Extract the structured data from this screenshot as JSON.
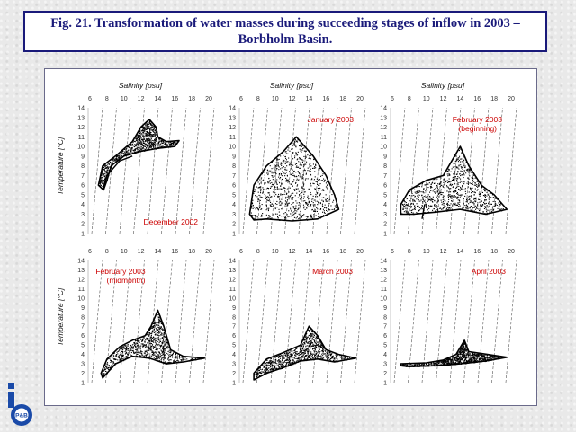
{
  "title": "Fig. 21. Transformation of water masses during succeeding stages of inflow in 2003 – Borbholm Basin.",
  "logo_text": "P&B",
  "colors": {
    "title": "#1a1a7a",
    "label_red": "#cc0000",
    "points": "#000000",
    "frame": "#6a6a8a"
  },
  "x_axis_label": "Salinity [psu]",
  "y_axis_label": "Temperature [°C]",
  "x_ticks": [
    "6",
    "8",
    "10",
    "12",
    "14",
    "16",
    "18",
    "20"
  ],
  "y_ticks": [
    "1",
    "2",
    "3",
    "4",
    "5",
    "6",
    "7",
    "8",
    "9",
    "10",
    "11",
    "12",
    "13",
    "14"
  ],
  "chart_data": [
    {
      "type": "scatter",
      "label": "December 2002",
      "xlabel": "Salinity [psu]",
      "ylabel": "Temperature [°C]",
      "xlim": [
        6,
        20
      ],
      "ylim": [
        1,
        14
      ],
      "shape": [
        [
          7,
          6
        ],
        [
          7.5,
          8
        ],
        [
          9,
          9
        ],
        [
          11,
          10.5
        ],
        [
          12,
          12
        ],
        [
          13,
          12.8
        ],
        [
          13.8,
          12
        ],
        [
          14,
          11
        ],
        [
          15,
          10.5
        ],
        [
          16.5,
          10.6
        ],
        [
          16,
          10
        ],
        [
          14,
          9.8
        ],
        [
          12,
          9.5
        ],
        [
          10,
          9
        ],
        [
          8.5,
          8
        ],
        [
          8,
          6.5
        ],
        [
          7.6,
          5.5
        ]
      ],
      "tail": [
        [
          7.5,
          5.5
        ],
        [
          8,
          7
        ],
        [
          9.5,
          8.5
        ],
        [
          11,
          9
        ]
      ]
    },
    {
      "type": "scatter",
      "label": "January 2003",
      "xlabel": "Salinity [psu]",
      "ylabel": "Temperature [°C]",
      "xlim": [
        6,
        20
      ],
      "ylim": [
        1,
        14
      ],
      "shape": [
        [
          7,
          3
        ],
        [
          7.5,
          6
        ],
        [
          9,
          8
        ],
        [
          11,
          9.5
        ],
        [
          12.5,
          11
        ],
        [
          13.5,
          10
        ],
        [
          14.5,
          9
        ],
        [
          16,
          7
        ],
        [
          17,
          5
        ],
        [
          17.5,
          3.5
        ],
        [
          15,
          2.5
        ],
        [
          12,
          2.3
        ],
        [
          9,
          2.5
        ],
        [
          7.5,
          2.4
        ]
      ]
    },
    {
      "type": "scatter",
      "label": "February 2003 (beginning)",
      "xlabel": "Salinity [psu]",
      "ylabel": "Temperature [°C]",
      "xlim": [
        6,
        20
      ],
      "ylim": [
        1,
        14
      ],
      "shape": [
        [
          7,
          4
        ],
        [
          8,
          5.5
        ],
        [
          10,
          6.5
        ],
        [
          12,
          7
        ],
        [
          13,
          8.5
        ],
        [
          14,
          10
        ],
        [
          15,
          8
        ],
        [
          16.5,
          6
        ],
        [
          18,
          5
        ],
        [
          19.5,
          3.5
        ],
        [
          17,
          3
        ],
        [
          14,
          3.5
        ],
        [
          11,
          3.2
        ],
        [
          8.5,
          3
        ],
        [
          7,
          3
        ]
      ],
      "tail": [
        [
          9.5,
          2.5
        ],
        [
          9.8,
          4
        ]
      ]
    },
    {
      "type": "scatter",
      "label": "February 2003 (midmonth)",
      "xlabel": "Salinity [psu]",
      "ylabel": "Temperature [°C]",
      "xlim": [
        6,
        20
      ],
      "ylim": [
        1,
        14
      ],
      "shape": [
        [
          7.3,
          2
        ],
        [
          8,
          3.5
        ],
        [
          9.5,
          4.8
        ],
        [
          11,
          5.5
        ],
        [
          12.5,
          6
        ],
        [
          13.2,
          7
        ],
        [
          14,
          8.7
        ],
        [
          14.7,
          7
        ],
        [
          15.5,
          4.5
        ],
        [
          17,
          3.8
        ],
        [
          19.5,
          3.6
        ],
        [
          17,
          3.2
        ],
        [
          15,
          3
        ],
        [
          13,
          3.6
        ],
        [
          11,
          3.8
        ],
        [
          9,
          3
        ],
        [
          7.5,
          1.5
        ]
      ]
    },
    {
      "type": "scatter",
      "label": "March 2003",
      "xlabel": "Salinity [psu]",
      "ylabel": "Temperature [°C]",
      "xlim": [
        6,
        20
      ],
      "ylim": [
        1,
        14
      ],
      "shape": [
        [
          7.5,
          2
        ],
        [
          9,
          3.5
        ],
        [
          11,
          4.2
        ],
        [
          13,
          5
        ],
        [
          14,
          7
        ],
        [
          15,
          6
        ],
        [
          16,
          4.5
        ],
        [
          17.5,
          4
        ],
        [
          19.5,
          3.6
        ],
        [
          17,
          3.2
        ],
        [
          15,
          3.5
        ],
        [
          13,
          3.3
        ],
        [
          11,
          2.6
        ],
        [
          9,
          2
        ],
        [
          7.5,
          1.3
        ]
      ]
    },
    {
      "type": "scatter",
      "label": "April 2003",
      "xlabel": "Salinity [psu]",
      "ylabel": "Temperature [°C]",
      "xlim": [
        6,
        20
      ],
      "ylim": [
        1,
        14
      ],
      "shape": [
        [
          7,
          3
        ],
        [
          10,
          3.1
        ],
        [
          12,
          3.4
        ],
        [
          13.5,
          4
        ],
        [
          14.5,
          5.5
        ],
        [
          15,
          4.3
        ],
        [
          16.5,
          4.1
        ],
        [
          19.5,
          3.7
        ],
        [
          17,
          3.3
        ],
        [
          14,
          3
        ],
        [
          11,
          2.8
        ],
        [
          8,
          2.7
        ],
        [
          7,
          2.8
        ]
      ]
    }
  ]
}
